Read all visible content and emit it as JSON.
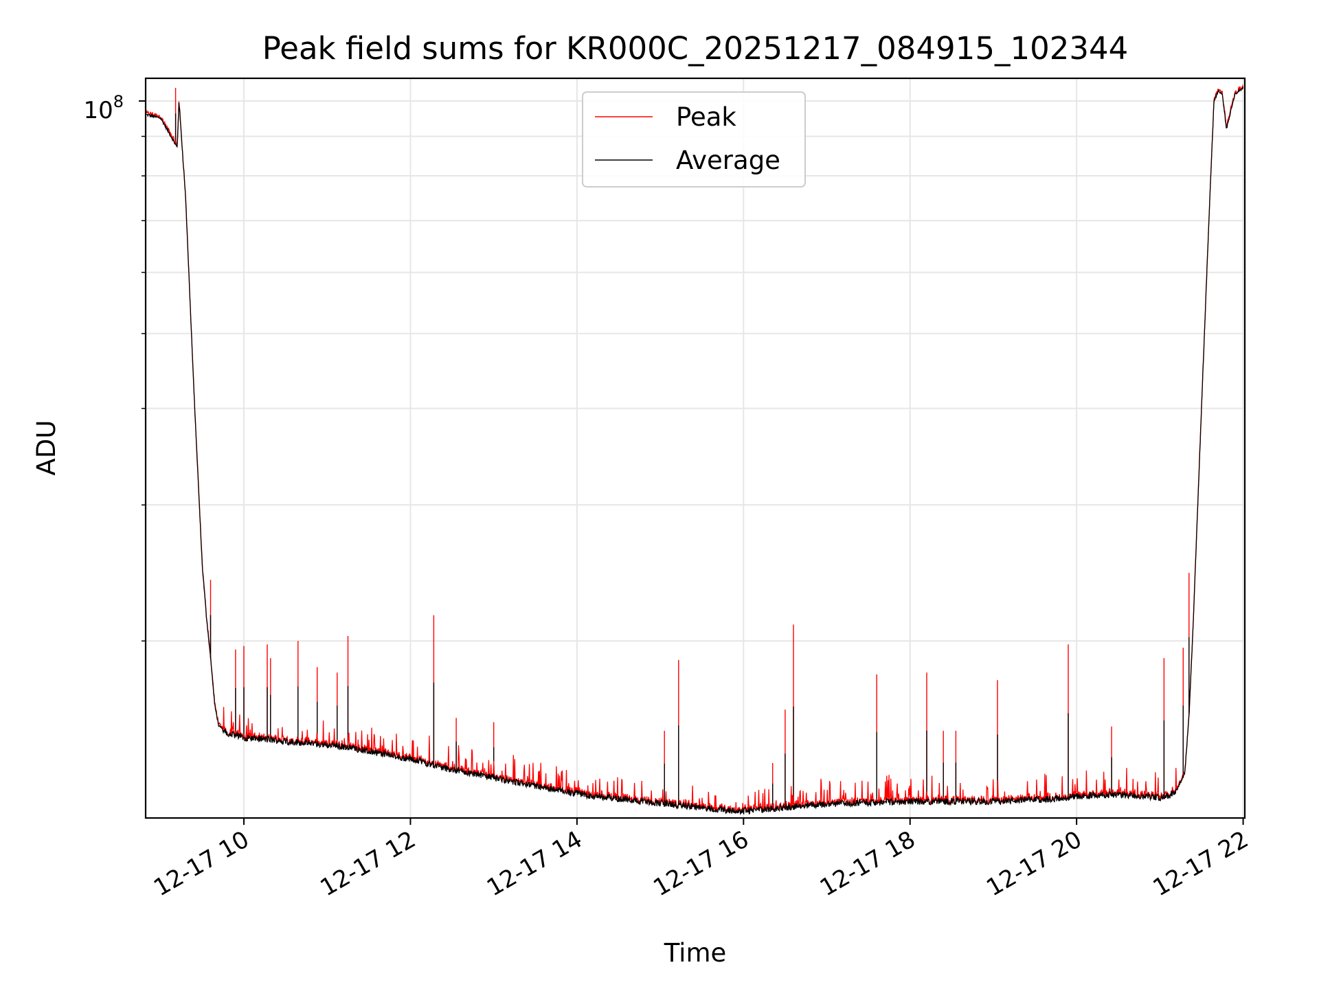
{
  "chart_data": {
    "type": "line",
    "title": "Peak field sums for KR000C_20251217_084915_102344",
    "xlabel": "Time",
    "ylabel": "ADU",
    "yscale": "log",
    "ylim": [
      11800000,
      107000000
    ],
    "ytick_label": {
      "base": "10",
      "exp": "8",
      "value": 100000000
    },
    "xlim": [
      8.82,
      22.02
    ],
    "x_unit": "hours on 2025-12-17",
    "x_ticks": [
      {
        "value": 10,
        "label": "12-17 10"
      },
      {
        "value": 12,
        "label": "12-17 12"
      },
      {
        "value": 14,
        "label": "12-17 14"
      },
      {
        "value": 16,
        "label": "12-17 16"
      },
      {
        "value": 18,
        "label": "12-17 18"
      },
      {
        "value": 20,
        "label": "12-17 20"
      },
      {
        "value": 22,
        "label": "12-17 22"
      }
    ],
    "y_gridlines": [
      20000000,
      30000000,
      40000000,
      50000000,
      60000000,
      70000000,
      80000000,
      90000000,
      100000000
    ],
    "grid": true,
    "legend": {
      "position": "upper-center",
      "entries": [
        {
          "name": "Peak",
          "color": "#ff0000"
        },
        {
          "name": "Average",
          "color": "#000000"
        }
      ]
    },
    "series": [
      {
        "name": "Average",
        "color": "#000000",
        "x": [
          8.83,
          9.0,
          9.1,
          9.2,
          9.22,
          9.3,
          9.4,
          9.5,
          9.55,
          9.6,
          9.65,
          9.7,
          9.8,
          10.0,
          10.3,
          10.6,
          10.9,
          11.2,
          11.5,
          11.8,
          12.1,
          12.4,
          12.7,
          13.0,
          13.3,
          13.6,
          13.9,
          14.2,
          14.5,
          14.8,
          15.1,
          15.4,
          15.7,
          16.0,
          16.2,
          16.4,
          16.6,
          16.8,
          17.0,
          17.4,
          17.8,
          18.2,
          18.6,
          19.0,
          19.4,
          19.8,
          20.0,
          20.4,
          20.8,
          21.0,
          21.1,
          21.2,
          21.3,
          21.35,
          21.4,
          21.5,
          21.6,
          21.65,
          21.7,
          21.75,
          21.8,
          21.9,
          22.0
        ],
        "y": [
          96000000,
          95000000,
          91000000,
          87000000,
          100000000,
          75000000,
          42000000,
          25000000,
          21500000,
          19000000,
          16500000,
          15500000,
          15200000,
          15000000,
          14900000,
          14800000,
          14700000,
          14600000,
          14400000,
          14200000,
          14000000,
          13700000,
          13500000,
          13300000,
          13100000,
          12900000,
          12750000,
          12600000,
          12500000,
          12400000,
          12300000,
          12200000,
          12100000,
          12050000,
          12100000,
          12150000,
          12200000,
          12250000,
          12300000,
          12350000,
          12380000,
          12400000,
          12400000,
          12400000,
          12450000,
          12500000,
          12600000,
          12650000,
          12600000,
          12550000,
          12600000,
          12800000,
          13500000,
          16000000,
          21000000,
          40000000,
          75000000,
          100000000,
          103000000,
          102000000,
          92000000,
          102000000,
          104000000
        ]
      },
      {
        "name": "Peak",
        "color": "#ff0000",
        "spikes": [
          {
            "x": 9.18,
            "y": 104000000
          },
          {
            "x": 9.6,
            "y": 24000000
          },
          {
            "x": 9.9,
            "y": 19500000
          },
          {
            "x": 10.0,
            "y": 19700000
          },
          {
            "x": 10.28,
            "y": 19800000
          },
          {
            "x": 10.32,
            "y": 19000000
          },
          {
            "x": 10.65,
            "y": 20000000
          },
          {
            "x": 10.88,
            "y": 18500000
          },
          {
            "x": 11.12,
            "y": 18200000
          },
          {
            "x": 11.25,
            "y": 20300000
          },
          {
            "x": 12.28,
            "y": 21600000
          },
          {
            "x": 12.55,
            "y": 15900000
          },
          {
            "x": 13.0,
            "y": 15700000
          },
          {
            "x": 15.05,
            "y": 15300000
          },
          {
            "x": 15.22,
            "y": 18900000
          },
          {
            "x": 16.35,
            "y": 13900000
          },
          {
            "x": 16.5,
            "y": 16300000
          },
          {
            "x": 16.6,
            "y": 21000000
          },
          {
            "x": 17.6,
            "y": 18100000
          },
          {
            "x": 18.2,
            "y": 18200000
          },
          {
            "x": 18.4,
            "y": 15300000
          },
          {
            "x": 18.55,
            "y": 15300000
          },
          {
            "x": 19.05,
            "y": 17800000
          },
          {
            "x": 19.9,
            "y": 19800000
          },
          {
            "x": 20.42,
            "y": 15500000
          },
          {
            "x": 21.05,
            "y": 19000000
          },
          {
            "x": 21.28,
            "y": 19600000
          },
          {
            "x": 21.35,
            "y": 24500000
          }
        ]
      }
    ]
  }
}
